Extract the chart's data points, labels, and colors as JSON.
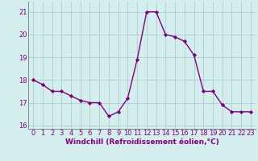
{
  "x": [
    0,
    1,
    2,
    3,
    4,
    5,
    6,
    7,
    8,
    9,
    10,
    11,
    12,
    13,
    14,
    15,
    16,
    17,
    18,
    19,
    20,
    21,
    22,
    23
  ],
  "y": [
    18.0,
    17.8,
    17.5,
    17.5,
    17.3,
    17.1,
    17.0,
    17.0,
    16.4,
    16.6,
    17.2,
    18.9,
    21.0,
    21.0,
    20.0,
    19.9,
    19.7,
    19.1,
    17.5,
    17.5,
    16.9,
    16.6,
    16.6,
    16.6
  ],
  "line_color": "#800080",
  "marker": "D",
  "marker_size": 2.2,
  "xlabel": "Windchill (Refroidissement éolien,°C)",
  "xlabel_fontsize": 6.5,
  "xlim": [
    -0.5,
    23.5
  ],
  "ylim": [
    15.85,
    21.45
  ],
  "yticks": [
    16,
    17,
    18,
    19,
    20,
    21
  ],
  "xticks": [
    0,
    1,
    2,
    3,
    4,
    5,
    6,
    7,
    8,
    9,
    10,
    11,
    12,
    13,
    14,
    15,
    16,
    17,
    18,
    19,
    20,
    21,
    22,
    23
  ],
  "grid_color": "#aacfcf",
  "bg_color": "#d4eeee",
  "axis_color": "#777777",
  "tick_color": "#800080",
  "tick_fontsize": 6.0,
  "line_width": 1.0
}
